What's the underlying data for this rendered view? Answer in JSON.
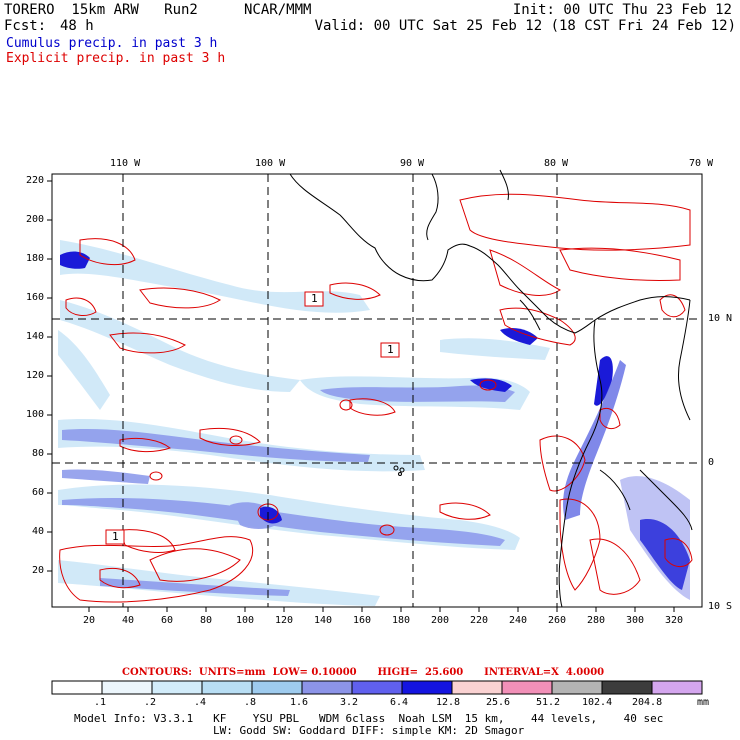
{
  "header": {
    "model": "TORERO  15km ARW   Run2",
    "org": "NCAR/MMM",
    "init": "Init: 00 UTC Thu 23 Feb 12",
    "fcst_label": "Fcst:",
    "fcst_value": "48 h",
    "valid": "Valid: 00 UTC Sat 25 Feb 12 (18 CST Fri 24 Feb 12)",
    "cumulus": "Cumulus precip. in past 3 h",
    "explicit": "Explicit precip. in past 3 h"
  },
  "map": {
    "top_lon_labels": [
      "110 W",
      "100 W",
      "90 W",
      "80 W",
      "70 W"
    ],
    "right_lat_labels": [
      "10 N",
      "0",
      "10 S"
    ],
    "y_ticks": [
      "220",
      "200",
      "180",
      "160",
      "140",
      "120",
      "100",
      "80",
      "60",
      "40",
      "20"
    ],
    "x_ticks": [
      "20",
      "40",
      "60",
      "80",
      "100",
      "120",
      "140",
      "160",
      "180",
      "200",
      "220",
      "240",
      "260",
      "280",
      "300",
      "320"
    ],
    "annotations": [
      "1",
      "1",
      "1"
    ],
    "colors": {
      "contour": "#dd0000",
      "coast": "#000000",
      "grid": "#000000"
    }
  },
  "legend": {
    "contours_line": "CONTOURS:  UNITS=mm  LOW= 0.10000      HIGH=  25.600      INTERVAL=X  4.0000",
    "scale_labels": [
      ".1",
      ".2",
      ".4",
      ".8",
      "1.6",
      "3.2",
      "6.4",
      "12.8",
      "25.6",
      "51.2",
      "102.4",
      "204.8"
    ],
    "units": "mm",
    "swatches": [
      "#ffffff",
      "#ecf6fc",
      "#d2ecfa",
      "#b8def4",
      "#9ecbee",
      "#8c94e8",
      "#6060ee",
      "#1414e0",
      "#fad2d2",
      "#f290b8",
      "#b4b4b4",
      "#3c3c3c",
      "#d4a6ee"
    ]
  },
  "footer": {
    "line1": "Model Info: V3.3.1   KF    YSU PBL   WDM 6class  Noah LSM  15 km,    44 levels,    40 sec",
    "line2": "LW: Godd SW: Goddard DIFF: simple KM: 2D Smagor"
  }
}
